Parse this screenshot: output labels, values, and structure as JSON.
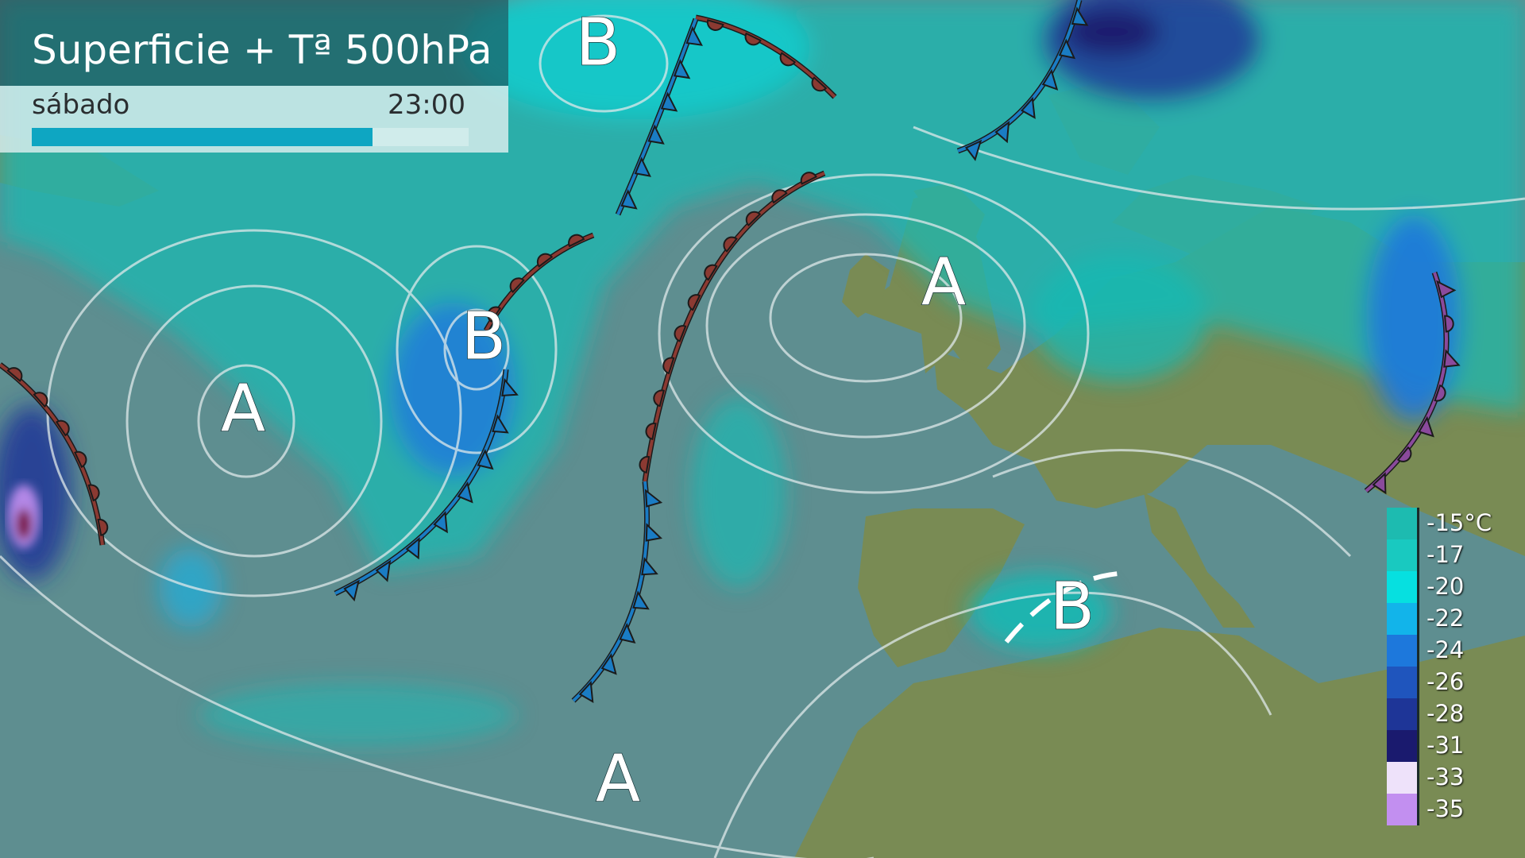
{
  "header": {
    "title": "Superficie + Tª 500hPa",
    "day": "sábado",
    "time": "23:00",
    "progress": 0.78
  },
  "legend": {
    "unit": "°C",
    "items": [
      {
        "label": "-15°C",
        "color": "#1dbbb0"
      },
      {
        "label": "-17",
        "color": "#19c9c0"
      },
      {
        "label": "-20",
        "color": "#06e0e0"
      },
      {
        "label": "-22",
        "color": "#12b4ea"
      },
      {
        "label": "-24",
        "color": "#1d78dc"
      },
      {
        "label": "-26",
        "color": "#1f55bd"
      },
      {
        "label": "-28",
        "color": "#1e3597"
      },
      {
        "label": "-31",
        "color": "#1a1a6e"
      },
      {
        "label": "-33",
        "color": "#eee2fa"
      },
      {
        "label": "-35",
        "color": "#c28ff0"
      }
    ]
  },
  "pressure_centers": [
    {
      "label": "B",
      "type": "low"
    },
    {
      "label": "B",
      "type": "low"
    },
    {
      "label": "A",
      "type": "high"
    },
    {
      "label": "A",
      "type": "high"
    },
    {
      "label": "B",
      "type": "low"
    },
    {
      "label": "A",
      "type": "high"
    }
  ],
  "fronts": [
    {
      "type": "warm",
      "color": "#8b3a32"
    },
    {
      "type": "cold",
      "color": "#1a7cc4"
    },
    {
      "type": "cold",
      "color": "#1a7cc4"
    },
    {
      "type": "warm",
      "color": "#8b3a32"
    },
    {
      "type": "cold",
      "color": "#1a7cc4"
    },
    {
      "type": "warm",
      "color": "#8b3a32"
    },
    {
      "type": "cold",
      "color": "#1a7cc4"
    },
    {
      "type": "warm",
      "color": "#8b3a32"
    },
    {
      "type": "occluded",
      "color": "#8a4a9c"
    },
    {
      "type": "trough",
      "color": "#ffffff"
    }
  ],
  "colors": {
    "ocean": "#5e8e90",
    "land": "#7b8c52",
    "isobar": "#dfe8ea"
  }
}
